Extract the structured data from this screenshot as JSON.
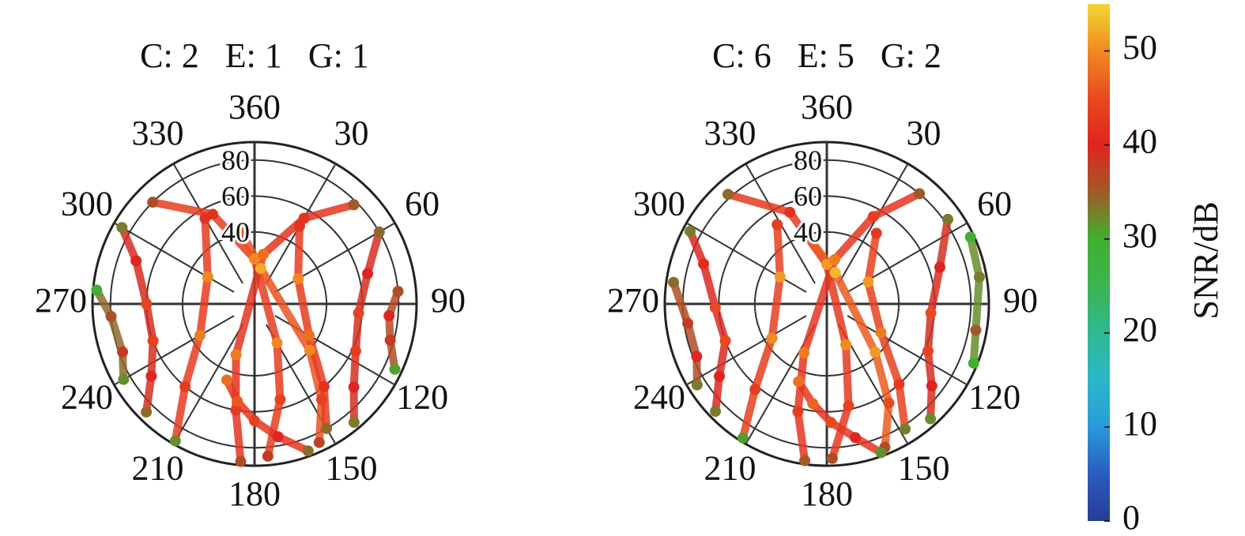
{
  "chart_data": [
    {
      "type": "polar",
      "title": "C: 2   E: 1   G: 1",
      "thetaticks": [
        360,
        30,
        60,
        90,
        120,
        150,
        180,
        210,
        240,
        270,
        300,
        330
      ],
      "rlim": [
        0,
        90
      ],
      "rticks": [
        40,
        60,
        80
      ],
      "series": [
        {
          "azimuth": [
            315,
            335,
            0,
            150,
            165,
            175
          ],
          "elevation": [
            80,
            55,
            25,
            25,
            55,
            85
          ],
          "snr": [
            36,
            42,
            50,
            50,
            44,
            38
          ]
        },
        {
          "azimuth": [
            45,
            30,
            10,
            200,
            190,
            185
          ],
          "elevation": [
            78,
            55,
            28,
            30,
            60,
            88
          ],
          "snr": [
            35,
            42,
            48,
            49,
            43,
            36
          ]
        },
        {
          "azimuth": [
            300,
            290,
            270,
            250,
            235,
            225
          ],
          "elevation": [
            85,
            70,
            60,
            60,
            70,
            85
          ],
          "snr": [
            33,
            40,
            44,
            44,
            40,
            34
          ]
        },
        {
          "azimuth": [
            60,
            75,
            95,
            115,
            130,
            140
          ],
          "elevation": [
            80,
            65,
            58,
            62,
            72,
            86
          ],
          "snr": [
            34,
            40,
            44,
            43,
            40,
            33
          ]
        },
        {
          "azimuth": [
            350,
            10,
            130,
            145,
            155
          ],
          "elevation": [
            40,
            20,
            40,
            65,
            85
          ],
          "snr": [
            46,
            52,
            50,
            44,
            37
          ]
        },
        {
          "azimuth": [
            330,
            300,
            240,
            220,
            210
          ],
          "elevation": [
            55,
            30,
            35,
            60,
            88
          ],
          "snr": [
            42,
            50,
            49,
            43,
            32
          ]
        },
        {
          "azimuth": [
            30,
            60,
            120,
            140,
            150
          ],
          "elevation": [
            50,
            28,
            35,
            60,
            80
          ],
          "snr": [
            42,
            50,
            48,
            42,
            34
          ]
        },
        {
          "azimuth": [
            275,
            265,
            250,
            240
          ],
          "elevation": [
            88,
            80,
            78,
            84
          ],
          "snr": [
            30,
            36,
            38,
            32
          ]
        },
        {
          "azimuth": [
            85,
            95,
            105,
            115
          ],
          "elevation": [
            80,
            75,
            78,
            86
          ],
          "snr": [
            36,
            40,
            38,
            31
          ]
        },
        {
          "azimuth": [
            200,
            190,
            180,
            170,
            160
          ],
          "elevation": [
            45,
            55,
            65,
            75,
            87
          ],
          "snr": [
            48,
            46,
            44,
            40,
            34
          ]
        }
      ]
    },
    {
      "type": "polar",
      "title": "C: 6   E: 5   G: 2",
      "thetaticks": [
        360,
        30,
        60,
        90,
        120,
        150,
        180,
        210,
        240,
        270,
        300,
        330
      ],
      "rlim": [
        0,
        90
      ],
      "rticks": [
        40,
        60,
        80
      ],
      "series": [
        {
          "azimuth": [
            318,
            338,
            0,
            155,
            168,
            178
          ],
          "elevation": [
            82,
            55,
            22,
            25,
            58,
            86
          ],
          "snr": [
            34,
            42,
            51,
            50,
            44,
            36
          ]
        },
        {
          "azimuth": [
            40,
            28,
            10,
            205,
            195,
            188
          ],
          "elevation": [
            80,
            55,
            25,
            30,
            62,
            88
          ],
          "snr": [
            35,
            43,
            49,
            49,
            43,
            35
          ]
        },
        {
          "azimuth": [
            298,
            288,
            268,
            250,
            236,
            226
          ],
          "elevation": [
            86,
            72,
            62,
            60,
            72,
            86
          ],
          "snr": [
            33,
            41,
            45,
            45,
            40,
            33
          ]
        },
        {
          "azimuth": [
            55,
            72,
            95,
            115,
            128,
            138
          ],
          "elevation": [
            82,
            66,
            58,
            62,
            74,
            86
          ],
          "snr": [
            33,
            40,
            45,
            44,
            40,
            32
          ]
        },
        {
          "azimuth": [
            345,
            15,
            135,
            148,
            158
          ],
          "elevation": [
            38,
            18,
            38,
            65,
            86
          ],
          "snr": [
            47,
            53,
            51,
            45,
            36
          ]
        },
        {
          "azimuth": [
            328,
            300,
            238,
            220,
            212
          ],
          "elevation": [
            52,
            30,
            36,
            62,
            88
          ],
          "snr": [
            43,
            51,
            50,
            43,
            31
          ]
        },
        {
          "azimuth": [
            35,
            62,
            118,
            138,
            148
          ],
          "elevation": [
            48,
            26,
            34,
            60,
            82
          ],
          "snr": [
            43,
            51,
            49,
            43,
            33
          ]
        },
        {
          "azimuth": [
            65,
            80,
            100,
            112
          ],
          "elevation": [
            88,
            86,
            84,
            88
          ],
          "snr": [
            30,
            33,
            35,
            30
          ]
        },
        {
          "azimuth": [
            278,
            262,
            248,
            238
          ],
          "elevation": [
            86,
            78,
            78,
            85
          ],
          "snr": [
            34,
            38,
            40,
            33
          ]
        },
        {
          "azimuth": [
            200,
            188,
            178,
            168,
            160
          ],
          "elevation": [
            46,
            56,
            66,
            76,
            88
          ],
          "snr": [
            48,
            47,
            45,
            40,
            32
          ]
        }
      ]
    },
    {
      "type": "colorbar",
      "label": "SNR/dB",
      "lim": [
        0,
        55
      ],
      "ticks": [
        0,
        10,
        20,
        30,
        40,
        50
      ],
      "colormap": [
        "#283c96",
        "#2a5cc0",
        "#2a9ad8",
        "#2ab8c8",
        "#30b890",
        "#3cb450",
        "#40b030",
        "#a05a28",
        "#e02420",
        "#e84a20",
        "#f08a20",
        "#f0d838"
      ]
    }
  ]
}
